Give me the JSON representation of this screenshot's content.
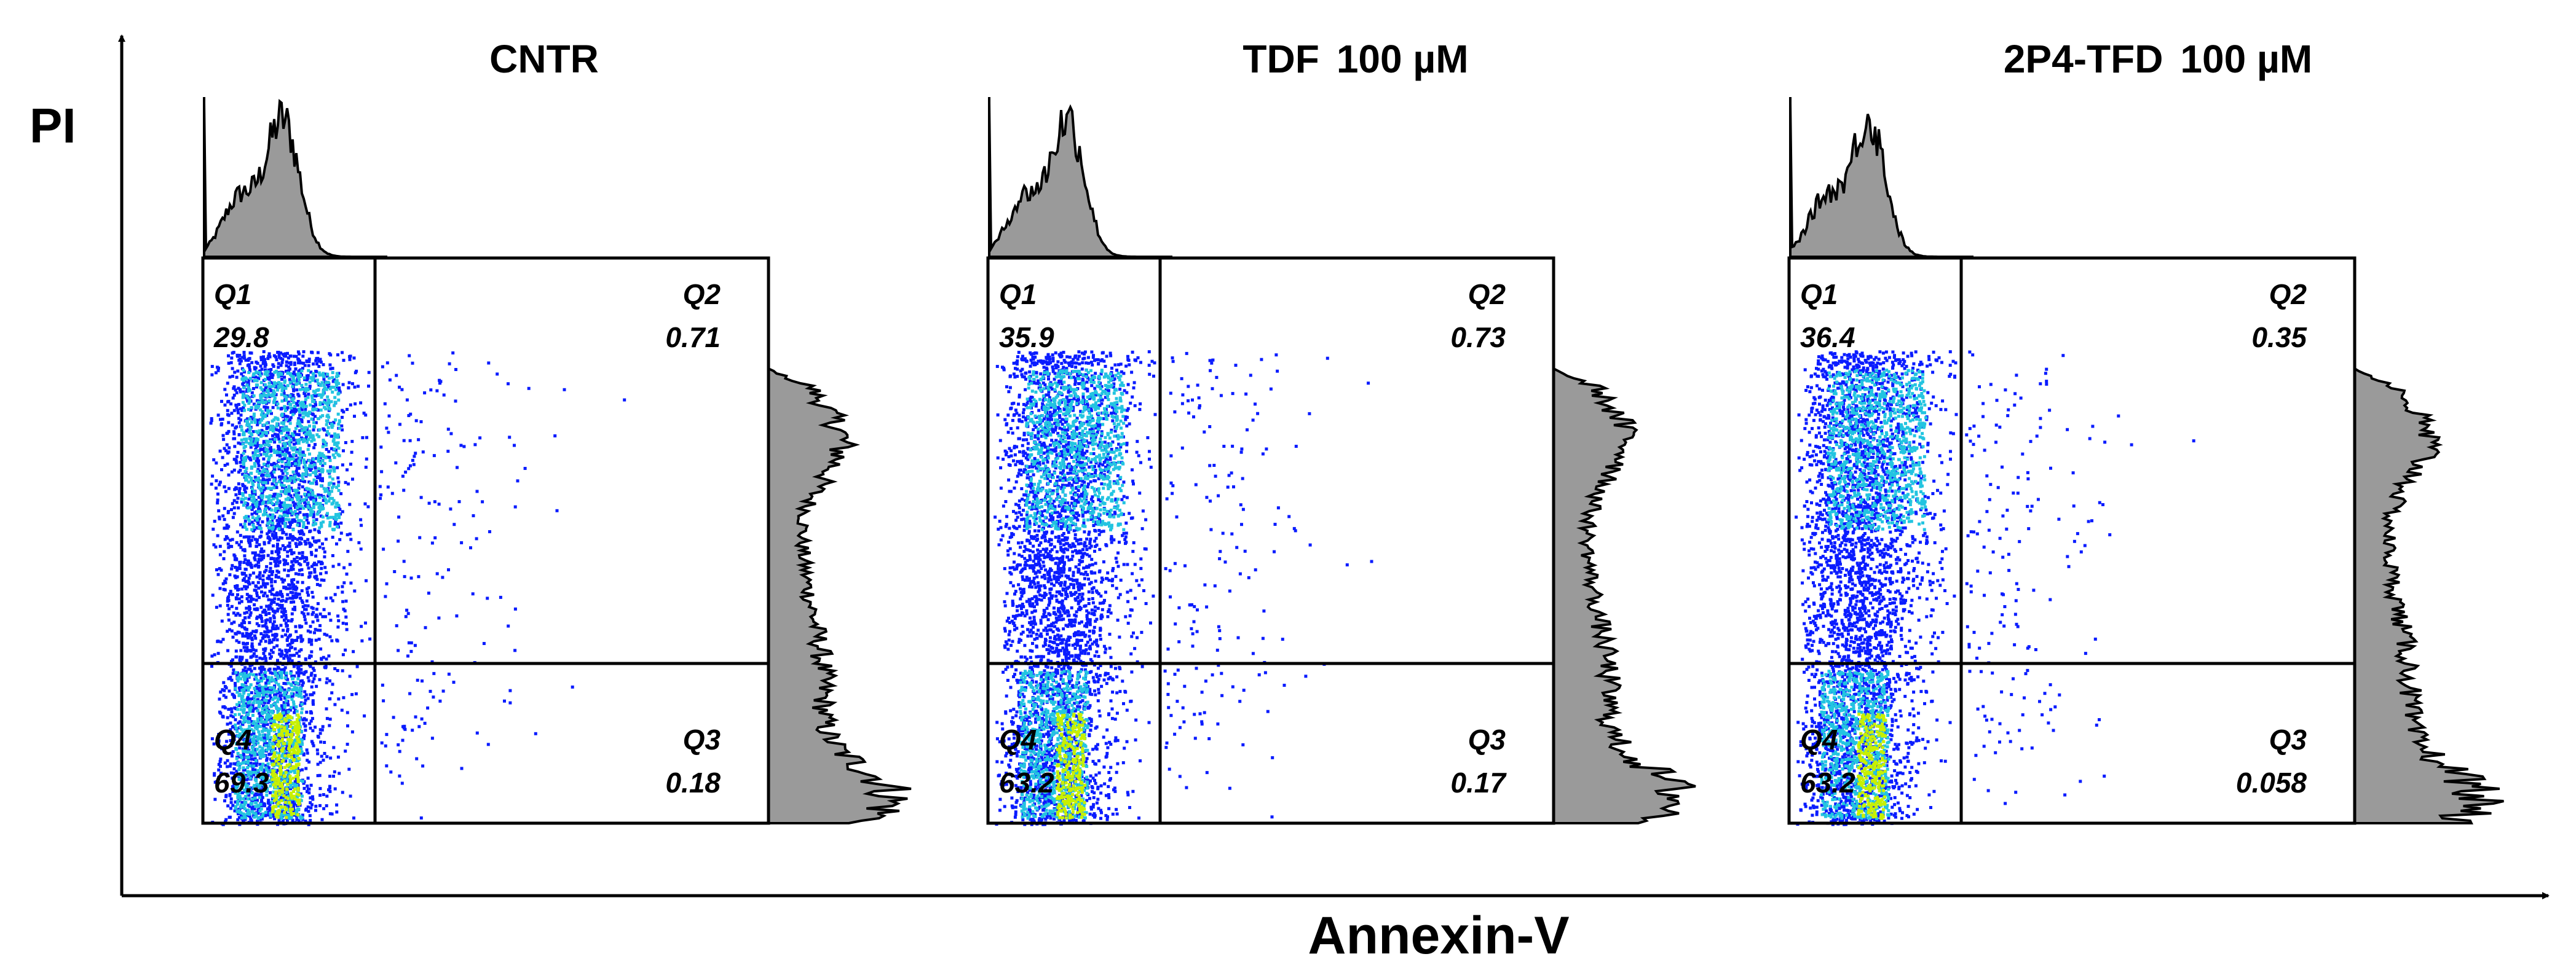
{
  "chart_data": {
    "type": "scatter",
    "subtype": "flow-cytometry-quadrant-dot-plot",
    "xlabel": "Annexin-V",
    "ylabel": "PI",
    "colors": {
      "density_low": "#0a1cff",
      "density_mid": "#23c4e0",
      "density_high": "#c8f000",
      "histogram_fill": "#9a9a9a",
      "histogram_line": "#000000",
      "frame": "#000000"
    },
    "panels": [
      {
        "title_main": "CNTR",
        "title_conc": "",
        "quadrants": [
          {
            "label": "Q1",
            "value": "29.8"
          },
          {
            "label": "Q2",
            "value": "0.71"
          },
          {
            "label": "Q3",
            "value": "0.18"
          },
          {
            "label": "Q4",
            "value": "69.3"
          }
        ]
      },
      {
        "title_main": "TDF",
        "title_conc": "100 µM",
        "quadrants": [
          {
            "label": "Q1",
            "value": "35.9"
          },
          {
            "label": "Q2",
            "value": "0.73"
          },
          {
            "label": "Q3",
            "value": "0.17"
          },
          {
            "label": "Q4",
            "value": "63.2"
          }
        ]
      },
      {
        "title_main": "2P4-TFD",
        "title_conc": "100 µM",
        "quadrants": [
          {
            "label": "Q1",
            "value": "36.4"
          },
          {
            "label": "Q2",
            "value": "0.35"
          },
          {
            "label": "Q3",
            "value": "0.058"
          },
          {
            "label": "Q4",
            "value": "63.2"
          }
        ]
      }
    ]
  }
}
